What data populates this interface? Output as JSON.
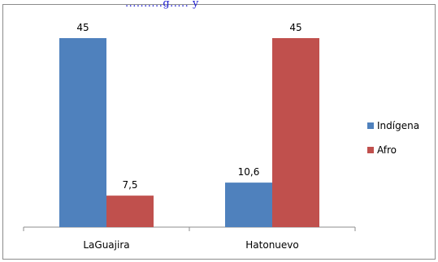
{
  "header_fragment": "..........g..... y",
  "chart_data": {
    "type": "bar",
    "categories": [
      "LaGuajira",
      "Hatonuevo"
    ],
    "series": [
      {
        "name": "Indígena",
        "color": "#4F81BD",
        "values": [
          45,
          10.6
        ],
        "labels": [
          "45",
          "10,6"
        ]
      },
      {
        "name": "Afro",
        "color": "#C0504D",
        "values": [
          7.5,
          45
        ],
        "labels": [
          "7,5",
          "45"
        ]
      }
    ],
    "ylim": [
      0,
      45
    ],
    "grid": false,
    "legend_position": "right"
  }
}
